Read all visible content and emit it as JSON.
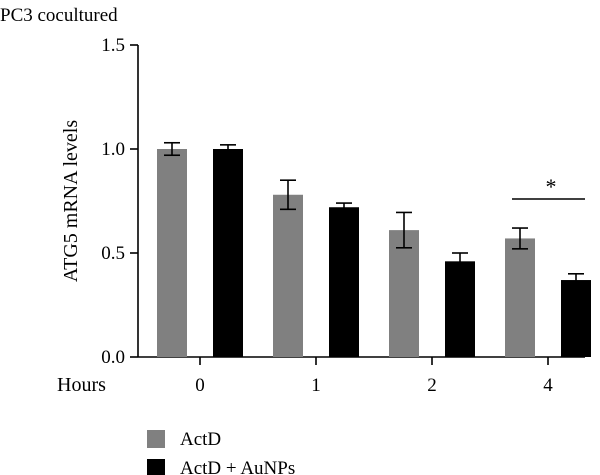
{
  "chart_data": {
    "type": "bar",
    "title": "PC3 cocultured",
    "xlabel": "Hours",
    "ylabel": "ATG5 mRNA levels",
    "categories": [
      "0",
      "1",
      "2",
      "4"
    ],
    "ylim": [
      0,
      1.5
    ],
    "yticks": [
      "0.0",
      "0.5",
      "1.0",
      "1.5"
    ],
    "grid": false,
    "legend_position": "bottom-left",
    "series": [
      {
        "name": "ActD",
        "color": "#808080",
        "values": [
          1.0,
          0.78,
          0.61,
          0.57
        ],
        "errors": [
          0.03,
          0.07,
          0.085,
          0.05
        ]
      },
      {
        "name": "ActD + AuNPs",
        "color": "#000000",
        "values": [
          1.0,
          0.72,
          0.46,
          0.37
        ],
        "errors": [
          0.02,
          0.02,
          0.04,
          0.03
        ]
      }
    ],
    "annotations": [
      {
        "text": "*",
        "category": "4",
        "type": "significance"
      }
    ]
  }
}
